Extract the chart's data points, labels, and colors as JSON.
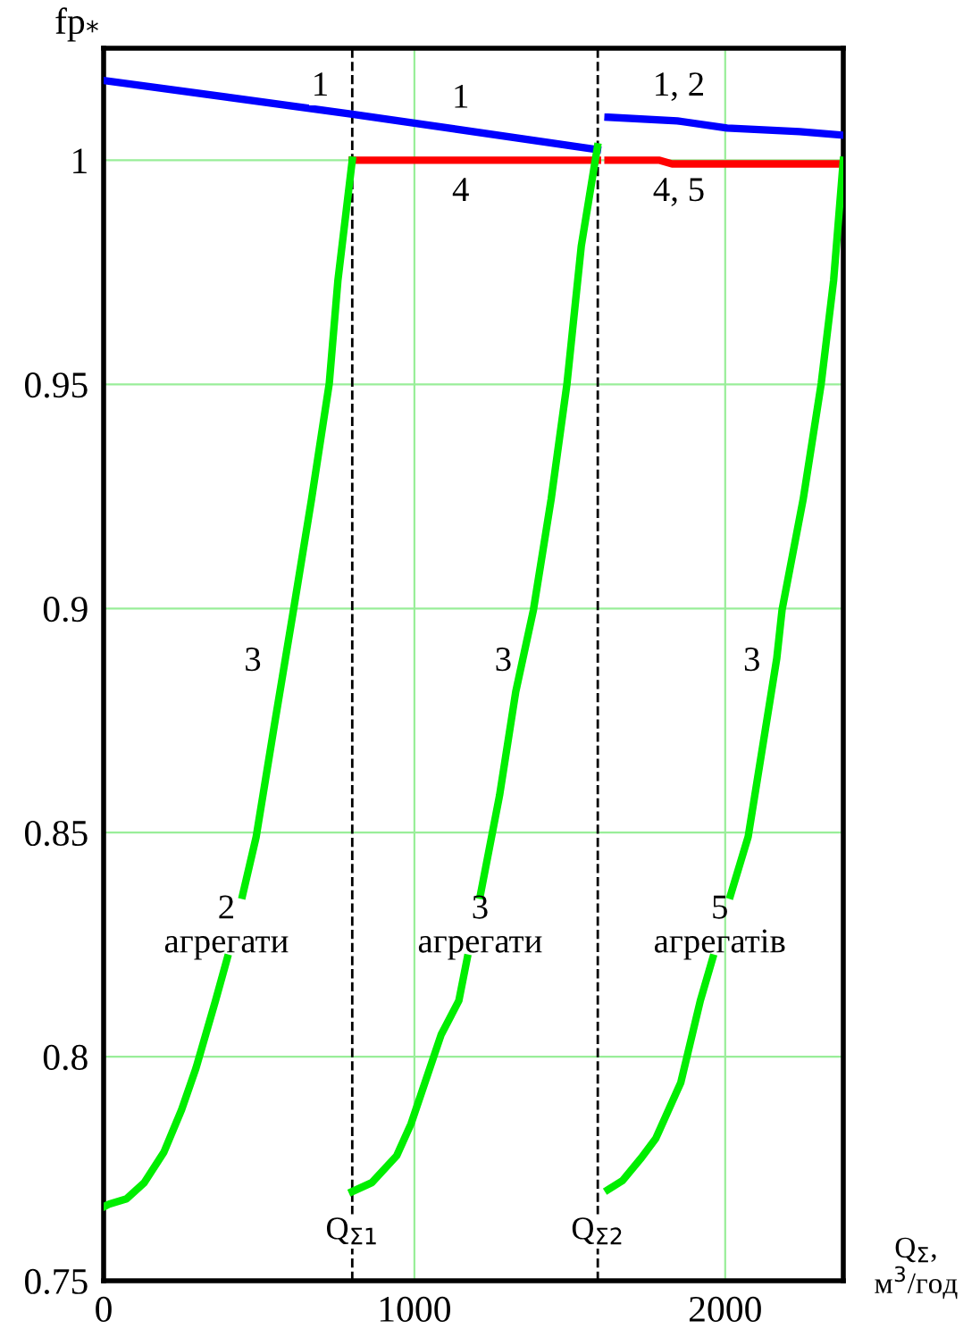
{
  "chart_data": {
    "type": "line",
    "ylabel": "fp$_{*}$",
    "xlabel": "Q$_{Σ}$,\nм$^{3}$/год",
    "xlim": [
      0,
      2380
    ],
    "ylim": [
      0.75,
      1.025
    ],
    "xticks": [
      0,
      1000,
      2000
    ],
    "yticks": [
      {
        "value": 0.75,
        "label": "0.75"
      },
      {
        "value": 0.8,
        "label": "0.8"
      },
      {
        "value": 0.85,
        "label": "0.85"
      },
      {
        "value": 0.9,
        "label": "0.9"
      },
      {
        "value": 0.95,
        "label": "0.95"
      },
      {
        "value": 1,
        "label": "1"
      }
    ],
    "grid": true,
    "legend": false,
    "marker": "none",
    "line_style": "solid",
    "series": [
      {
        "color": "#0000ff",
        "x": [
          0,
          800,
          1589
        ],
        "values": [
          1.0178,
          1.0103,
          1.0024
        ]
      },
      {
        "color": "#0000ff",
        "x": [
          1623,
          1846,
          2006,
          2240,
          2377
        ],
        "values": [
          1.0096,
          1.0088,
          1.0072,
          1.0064,
          1.0056
        ]
      },
      {
        "color": "#ff0000",
        "x": [
          800,
          1589
        ],
        "values": [
          1.0,
          1.0
        ]
      },
      {
        "color": "#ff0000",
        "x": [
          1623,
          1789,
          1829,
          2380
        ],
        "values": [
          1.0,
          1.0,
          0.9992,
          0.9992
        ]
      },
      {
        "color": "#00ee00",
        "x": [
          0,
          17,
          74,
          131,
          194,
          251,
          297,
          360,
          398,
          420,
          447,
          491,
          549,
          611,
          669,
          726,
          754,
          800
        ],
        "values": [
          0.7665,
          0.7671,
          0.7683,
          0.7719,
          0.7787,
          0.7882,
          0.7974,
          0.8125,
          0.822,
          null,
          0.836,
          0.8491,
          0.8738,
          0.8997,
          0.9244,
          0.9502,
          0.9733,
          1.0
        ]
      },
      {
        "color": "#00ee00",
        "x": [
          800,
          863,
          943,
          989,
          1086,
          1143,
          1170,
          1190,
          1212,
          1274,
          1326,
          1383,
          1440,
          1491,
          1537,
          1589
        ],
        "values": [
          0.7699,
          0.7719,
          0.7779,
          0.785,
          0.8049,
          0.8125,
          0.822,
          null,
          0.836,
          0.8583,
          0.8814,
          0.8997,
          0.9244,
          0.9502,
          0.9809,
          1.003
        ]
      },
      {
        "color": "#00ee00",
        "x": [
          1623,
          1669,
          1731,
          1777,
          1857,
          1920,
          1960,
          1990,
          2017,
          2074,
          2166,
          2183,
          2251,
          2309,
          2349,
          2380
        ],
        "values": [
          0.7703,
          0.7723,
          0.7775,
          0.7818,
          0.7942,
          0.8125,
          0.822,
          null,
          0.836,
          0.8491,
          0.8889,
          0.8997,
          0.9244,
          0.9502,
          0.9733,
          1.0
        ]
      }
    ],
    "ref_lines": [
      {
        "axis": "x",
        "value": 800,
        "label": "Q$_{Σ1}$",
        "color": "#000000",
        "line_style": "dashed"
      },
      {
        "axis": "x",
        "value": 1590,
        "label": "Q$_{Σ2}$",
        "color": "#000000",
        "line_style": "dashed"
      }
    ],
    "annotations": [
      {
        "text": "1",
        "x": 697,
        "y": 1.0163
      },
      {
        "text": "1",
        "x": 1149,
        "y": 1.0136
      },
      {
        "text": "1, 2",
        "x": 1851,
        "y": 1.0163
      },
      {
        "text": "4",
        "x": 1149,
        "y": 0.9928
      },
      {
        "text": "4, 5",
        "x": 1851,
        "y": 0.9928
      },
      {
        "text": "3",
        "x": 480,
        "y": 0.888
      },
      {
        "text": "3",
        "x": 1286,
        "y": 0.888
      },
      {
        "text": "3",
        "x": 2086,
        "y": 0.888
      },
      "2\nагрегати",
      "3\nагрегати",
      "5\nагрегатів"
    ]
  }
}
